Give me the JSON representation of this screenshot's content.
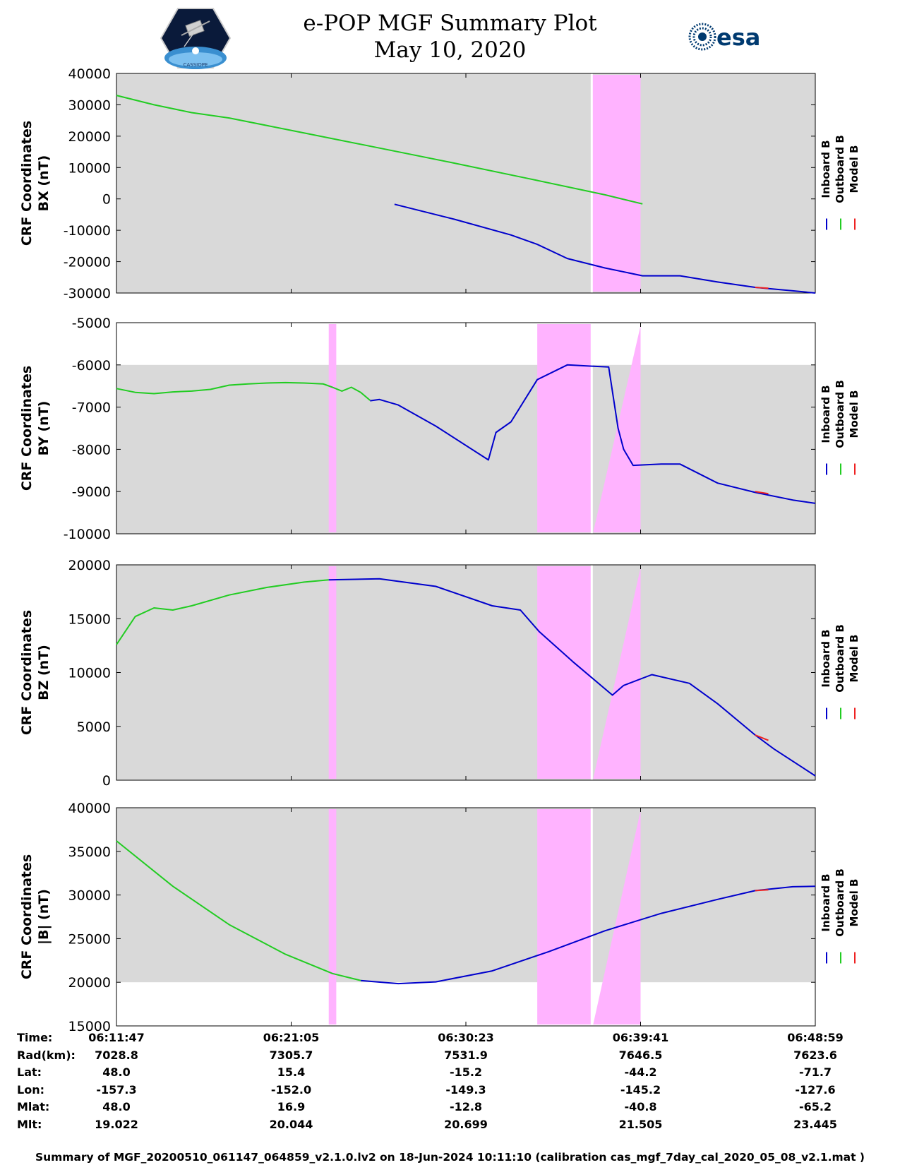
{
  "header": {
    "title": "e-POP MGF Summary Plot",
    "date": "May 10, 2020",
    "logo_left": "cassiope-mission-logo",
    "logo_right_text": "esa"
  },
  "legend": {
    "labels": [
      "Inboard B",
      "Outboard B",
      "Model B"
    ],
    "colors": [
      "#0000cc",
      "#22cc22",
      "#ee2222"
    ]
  },
  "colors": {
    "background_gray": "#d9d9d9",
    "gap_magenta": "#ffb3ff",
    "inboard": "#0000cc",
    "outboard": "#22cc22",
    "model": "#ee2222"
  },
  "chart_data": [
    {
      "type": "line",
      "title": "",
      "ylabel": "CRF Coordinates BX (nT)",
      "ylabel_lines": [
        "CRF Coordinates",
        "BX (nT)"
      ],
      "ylim": [
        -30000,
        40000
      ],
      "yticks": [
        40000,
        30000,
        20000,
        10000,
        0,
        -10000,
        -20000,
        -30000
      ],
      "xlim": [
        0,
        37.2
      ],
      "series": [
        {
          "name": "Outboard B",
          "x": [
            0,
            2,
            4,
            6,
            10,
            14,
            18,
            22,
            26,
            28
          ],
          "y": [
            33000,
            30000,
            27500,
            25800,
            21000,
            16200,
            11400,
            6400,
            1300,
            -1600
          ]
        },
        {
          "name": "Inboard B",
          "x": [
            14.8,
            18,
            21,
            22.4,
            24,
            26,
            28,
            30,
            32,
            34,
            36,
            37.2
          ],
          "y": [
            -1700,
            -6500,
            -11500,
            -14500,
            -19000,
            -22000,
            -24500,
            -24500,
            -26500,
            -28200,
            -29300,
            -30000
          ]
        },
        {
          "name": "Model B",
          "x": [
            34,
            34.7
          ],
          "y": [
            -28200,
            -28500
          ]
        }
      ]
    },
    {
      "type": "line",
      "title": "",
      "ylabel": "CRF Coordinates BY (nT)",
      "ylabel_lines": [
        "CRF Coordinates",
        "BY (nT)"
      ],
      "ylim": [
        -10000,
        -5000
      ],
      "yticks": [
        -5000,
        -6000,
        -7000,
        -8000,
        -9000,
        -10000
      ],
      "xlim": [
        0,
        37.2
      ],
      "series": [
        {
          "name": "Outboard B",
          "x": [
            0,
            1,
            2,
            3,
            4,
            5,
            6,
            7,
            8,
            9,
            10,
            11,
            11.5,
            12,
            12.5,
            13,
            13.5
          ],
          "y": [
            -6560,
            -6650,
            -6680,
            -6640,
            -6620,
            -6580,
            -6480,
            -6450,
            -6430,
            -6420,
            -6430,
            -6450,
            -6530,
            -6620,
            -6530,
            -6650,
            -6840
          ]
        },
        {
          "name": "Inboard B",
          "x": [
            13.5,
            14,
            15,
            17,
            19.8,
            20.2,
            21,
            22.4,
            24,
            25.3,
            26.2,
            26.7,
            27,
            27.5,
            29,
            30,
            32,
            34,
            36,
            37.2
          ],
          "y": [
            -6850,
            -6820,
            -6950,
            -7450,
            -8250,
            -7600,
            -7350,
            -6350,
            -6000,
            -6030,
            -6050,
            -7500,
            -8000,
            -8380,
            -8350,
            -8350,
            -8800,
            -9020,
            -9200,
            -9280
          ]
        },
        {
          "name": "Model B",
          "x": [
            34,
            34.7
          ],
          "y": [
            -9000,
            -9050
          ]
        }
      ]
    },
    {
      "type": "line",
      "title": "",
      "ylabel": "CRF Coordinates BZ (nT)",
      "ylabel_lines": [
        "CRF Coordinates",
        "BZ (nT)"
      ],
      "ylim": [
        0,
        20000
      ],
      "yticks": [
        20000,
        15000,
        10000,
        5000,
        0
      ],
      "xlim": [
        0,
        37.2
      ],
      "series": [
        {
          "name": "Outboard B",
          "x": [
            0,
            1,
            2,
            3,
            4,
            6,
            8,
            10,
            11.3
          ],
          "y": [
            12600,
            15200,
            16000,
            15800,
            16200,
            17200,
            17900,
            18400,
            18600
          ]
        },
        {
          "name": "Inboard B",
          "x": [
            11.3,
            14,
            17,
            20,
            21.5,
            22.5,
            24.3,
            26.4,
            27,
            28.5,
            30.5,
            32,
            34,
            35,
            37.2
          ],
          "y": [
            18600,
            18700,
            18000,
            16200,
            15800,
            13800,
            11000,
            7900,
            8800,
            9800,
            9000,
            7100,
            4200,
            2900,
            400
          ]
        },
        {
          "name": "Model B",
          "x": [
            34,
            34.7
          ],
          "y": [
            4200,
            3700
          ]
        }
      ]
    },
    {
      "type": "line",
      "title": "",
      "ylabel": "CRF Coordinates |B| (nT)",
      "ylabel_lines": [
        "CRF Coordinates",
        "|B| (nT)"
      ],
      "ylim": [
        15000,
        40000
      ],
      "yticks": [
        40000,
        35000,
        30000,
        25000,
        20000,
        15000
      ],
      "xlim": [
        0,
        37.2
      ],
      "series": [
        {
          "name": "Outboard B",
          "x": [
            0,
            3,
            6,
            9,
            11.5,
            13
          ],
          "y": [
            36200,
            31000,
            26600,
            23200,
            21000,
            20200
          ]
        },
        {
          "name": "Inboard B",
          "x": [
            13,
            15,
            17,
            20,
            23,
            26,
            29,
            32,
            34,
            36,
            37.2
          ],
          "y": [
            20200,
            19850,
            20050,
            21300,
            23500,
            25900,
            27900,
            29500,
            30500,
            30950,
            31000
          ]
        },
        {
          "name": "Model B",
          "x": [
            34,
            34.7
          ],
          "y": [
            30500,
            30600
          ]
        }
      ]
    }
  ],
  "x_axis": {
    "ticks": [
      {
        "x": 0,
        "time": "06:11:47",
        "rad": "7028.8",
        "lat": "48.0",
        "lon": "-157.3",
        "mlat": "48.0",
        "mlt": "19.022"
      },
      {
        "x": 9.3,
        "time": "06:21:05",
        "rad": "7305.7",
        "lat": "15.4",
        "lon": "-152.0",
        "mlat": "16.9",
        "mlt": "20.044"
      },
      {
        "x": 18.6,
        "time": "06:30:23",
        "rad": "7531.9",
        "lat": "-15.2",
        "lon": "-149.3",
        "mlat": "-12.8",
        "mlt": "20.699"
      },
      {
        "x": 27.9,
        "time": "06:39:41",
        "rad": "7646.5",
        "lat": "-44.2",
        "lon": "-145.2",
        "mlat": "-40.8",
        "mlt": "21.505"
      },
      {
        "x": 37.2,
        "time": "06:48:59",
        "rad": "7623.6",
        "lat": "-71.7",
        "lon": "-127.6",
        "mlat": "-65.2",
        "mlt": "23.445"
      }
    ]
  },
  "info_labels": {
    "time": "Time:",
    "rad": "Rad(km):",
    "lat": "Lat:",
    "lon": "Lon:",
    "mlat": "Mlat:",
    "mlt": "Mlt:"
  },
  "footer": "Summary of MGF_20200510_061147_064859_v2.1.0.lv2 on 18-Jun-2024 10:11:10 (calibration cas_mgf_7day_cal_2020_05_08_v2.1.mat )"
}
